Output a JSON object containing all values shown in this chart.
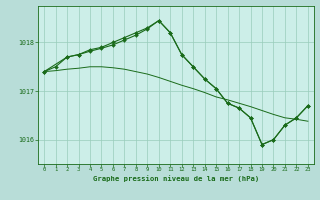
{
  "title": "Graphe pression niveau de la mer (hPa)",
  "bg_color": "#b8ddd8",
  "plot_bg_color": "#cceee8",
  "line_color": "#1a6b1a",
  "grid_color": "#99ccbb",
  "xlim": [
    -0.5,
    23.5
  ],
  "ylim": [
    1015.5,
    1018.75
  ],
  "yticks": [
    1016,
    1017,
    1018
  ],
  "xticks": [
    0,
    1,
    2,
    3,
    4,
    5,
    6,
    7,
    8,
    9,
    10,
    11,
    12,
    13,
    14,
    15,
    16,
    17,
    18,
    19,
    20,
    21,
    22,
    23
  ],
  "series_peak_x": [
    0,
    1,
    2,
    3,
    4,
    5,
    6,
    7,
    8,
    9,
    10,
    11,
    12,
    13,
    14,
    15,
    16,
    17,
    18,
    19,
    20,
    21,
    22,
    23
  ],
  "series_peak_y": [
    1017.4,
    1017.5,
    1017.7,
    1017.75,
    1017.85,
    1017.9,
    1018.0,
    1018.1,
    1018.2,
    1018.3,
    1018.45,
    1018.2,
    1017.75,
    1017.5,
    1017.25,
    1017.05,
    1016.75,
    1016.65,
    1016.45,
    1015.9,
    1016.0,
    1016.3,
    1016.45,
    1016.7
  ],
  "series_flat_x": [
    0,
    1,
    2,
    3,
    4,
    5,
    6,
    7,
    8,
    9,
    10,
    11,
    12,
    13,
    14,
    15,
    16,
    17,
    18,
    19,
    20,
    21,
    22,
    23
  ],
  "series_flat_y": [
    1017.4,
    1017.42,
    1017.45,
    1017.47,
    1017.5,
    1017.5,
    1017.48,
    1017.45,
    1017.4,
    1017.35,
    1017.28,
    1017.2,
    1017.12,
    1017.05,
    1016.97,
    1016.88,
    1016.82,
    1016.75,
    1016.68,
    1016.6,
    1016.52,
    1016.45,
    1016.42,
    1016.38
  ],
  "series_mid_x": [
    0,
    2,
    3,
    4,
    5,
    6,
    7,
    8,
    9,
    10,
    11,
    12,
    13,
    14,
    15,
    16,
    17,
    18,
    19,
    20,
    21,
    22,
    23
  ],
  "series_mid_y": [
    1017.4,
    1017.7,
    1017.75,
    1017.82,
    1017.88,
    1017.95,
    1018.05,
    1018.15,
    1018.28,
    1018.45,
    1018.2,
    1017.75,
    1017.5,
    1017.25,
    1017.05,
    1016.75,
    1016.65,
    1016.45,
    1015.9,
    1016.0,
    1016.3,
    1016.45,
    1016.7
  ]
}
